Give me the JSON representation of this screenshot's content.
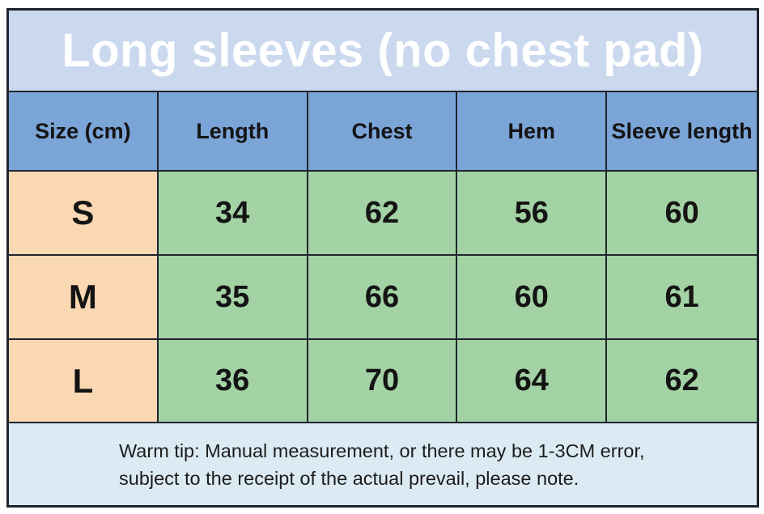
{
  "title": "Long sleeves (no chest pad)",
  "colors": {
    "title_bg": "#cbd9ee",
    "title_text": "#ffffff",
    "header_bg": "#7ba4d7",
    "size_col_bg": "#f9d8b3",
    "value_cell_bg": "#a3d2a4",
    "footer_bg": "#dcebf3",
    "grid_border": "#20242e"
  },
  "chart_data": {
    "type": "table",
    "title": "Long sleeves (no chest pad)",
    "columns": [
      "Size (cm)",
      "Length",
      "Chest",
      "Hem",
      "Sleeve length"
    ],
    "rows": [
      {
        "size": "S",
        "values": [
          34,
          62,
          56,
          60
        ]
      },
      {
        "size": "M",
        "values": [
          35,
          66,
          60,
          61
        ]
      },
      {
        "size": "L",
        "values": [
          36,
          70,
          64,
          62
        ]
      }
    ]
  },
  "footer": {
    "line1": "Warm tip: Manual measurement, or there may be 1-3CM error,",
    "line2": "subject to the receipt of the actual prevail, please note."
  }
}
